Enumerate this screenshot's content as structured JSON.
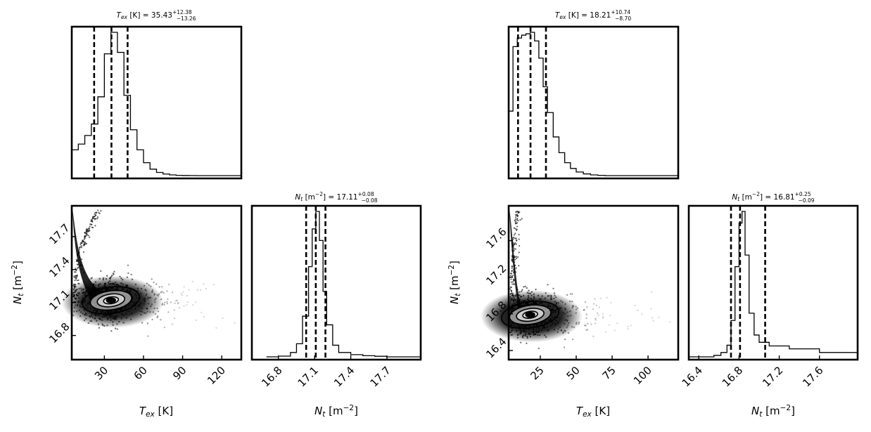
{
  "chart_data": [
    {
      "type": "corner",
      "panel": "left",
      "titles": {
        "tex": {
          "name": "T",
          "sub": "ex",
          "unit": " [K] = ",
          "value": "35.43",
          "plus": "+12.38",
          "minus": "−13.26"
        },
        "nt": {
          "name": "N",
          "sub": "t",
          "unit": " [m",
          "exp": "−2",
          "unit2": "] = ",
          "value": "17.11",
          "plus": "+0.08",
          "minus": "−0.08"
        }
      },
      "tex_range": [
        5,
        135
      ],
      "nt_range": [
        16.58,
        17.98
      ],
      "tex_ticks": [
        "30",
        "60",
        "90",
        "120"
      ],
      "nt_ticks": [
        "16.8",
        "17.1",
        "17.4",
        "17.7"
      ],
      "tex_quantiles": [
        22.17,
        35.43,
        47.81
      ],
      "nt_quantiles": [
        17.03,
        17.11,
        17.19
      ],
      "tex_hist": {
        "x": [
          5,
          10,
          15,
          20,
          25,
          30,
          35,
          40,
          45,
          50,
          55,
          60,
          65,
          70,
          75,
          80,
          85,
          90,
          95,
          100
        ],
        "y": [
          0.18,
          0.22,
          0.28,
          0.36,
          0.55,
          0.85,
          1.0,
          0.86,
          0.56,
          0.32,
          0.18,
          0.09,
          0.045,
          0.022,
          0.011,
          0.005,
          0.002,
          0.001,
          0.0005,
          0
        ]
      },
      "nt_hist": {
        "x": [
          16.7,
          16.8,
          16.9,
          16.95,
          17.0,
          17.05,
          17.08,
          17.11,
          17.14,
          17.17,
          17.2,
          17.25,
          17.3,
          17.4,
          17.5,
          17.6,
          17.7
        ],
        "y": [
          0,
          0.005,
          0.03,
          0.09,
          0.28,
          0.62,
          0.88,
          1.0,
          0.8,
          0.45,
          0.22,
          0.08,
          0.03,
          0.015,
          0.008,
          0.004,
          0
        ]
      },
      "scatter": {
        "center_tex": 34,
        "center_nt": 17.12,
        "max_tex": 128
      },
      "xlabel": {
        "name": "T",
        "sub": "ex",
        "unit": " [K]"
      },
      "ylabel": {
        "name": "N",
        "sub": "t",
        "unit": " [m",
        "exp": "−2",
        "unit2": "]"
      }
    },
    {
      "type": "corner",
      "panel": "right",
      "titles": {
        "tex": {
          "name": "T",
          "sub": "ex",
          "unit": " [K] = ",
          "value": "18.21",
          "plus": "+10.74",
          "minus": "−8.70"
        },
        "nt": {
          "name": "N",
          "sub": "t",
          "unit": " [m",
          "exp": "−2",
          "unit2": "] = ",
          "value": "16.81",
          "plus": "+0.25",
          "minus": "−0.09"
        }
      },
      "tex_range": [
        3,
        121
      ],
      "nt_range": [
        16.3,
        17.98
      ],
      "tex_ticks": [
        "25",
        "50",
        "75",
        "100"
      ],
      "nt_ticks": [
        "16.4",
        "16.8",
        "17.2",
        "17.6"
      ],
      "tex_quantiles": [
        9.51,
        18.21,
        28.95
      ],
      "nt_quantiles": [
        16.72,
        16.81,
        17.06
      ],
      "tex_hist": {
        "x": [
          3,
          6,
          9,
          12,
          15,
          18,
          21,
          24,
          27,
          30,
          34,
          38,
          42,
          46,
          50,
          55,
          60,
          65,
          70
        ],
        "y": [
          0.45,
          0.9,
          0.96,
          0.98,
          0.99,
          1.0,
          0.94,
          0.82,
          0.62,
          0.44,
          0.27,
          0.16,
          0.09,
          0.05,
          0.025,
          0.012,
          0.005,
          0.002,
          0
        ]
      },
      "nt_hist": {
        "x": [
          16.3,
          16.55,
          16.62,
          16.68,
          16.72,
          16.76,
          16.8,
          16.83,
          16.86,
          16.9,
          16.95,
          17.0,
          17.1,
          17.3,
          17.6,
          17.98
        ],
        "y": [
          0,
          0.01,
          0.03,
          0.08,
          0.25,
          0.62,
          0.92,
          1.0,
          0.7,
          0.3,
          0.15,
          0.1,
          0.075,
          0.055,
          0.03,
          0.018
        ]
      },
      "scatter": {
        "center_tex": 17,
        "center_nt": 16.79,
        "max_tex": 112
      },
      "xlabel": {
        "name": "T",
        "sub": "ex",
        "unit": " [K]"
      },
      "ylabel": {
        "name": "N",
        "sub": "t",
        "unit": " [m",
        "exp": "−2",
        "unit2": "]"
      }
    }
  ]
}
